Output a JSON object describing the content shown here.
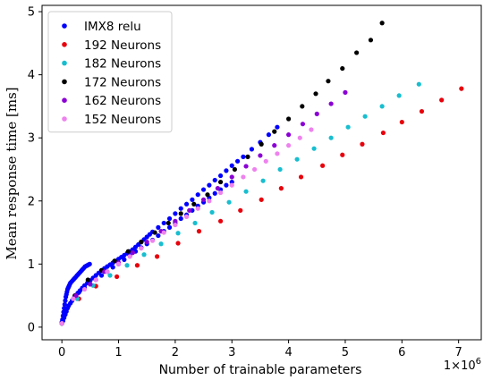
{
  "chart_data": {
    "type": "scatter",
    "xlabel": "Number of trainable parameters",
    "ylabel": "Mean response time [ms]",
    "x_multiplier_label": "1e6",
    "xlim": [
      -0.35,
      7.4
    ],
    "ylim": [
      -0.2,
      5.1
    ],
    "x_unit_scale": 1000000,
    "xticks": [
      0,
      1,
      2,
      3,
      4,
      5,
      6,
      7
    ],
    "yticks": [
      0,
      1,
      2,
      3,
      4,
      5
    ],
    "legend_position": "upper-left",
    "grid": false,
    "series": [
      {
        "name": "IMX8 relu",
        "color": "#0000ff",
        "x": [
          0.0,
          0.01,
          0.02,
          0.03,
          0.04,
          0.05,
          0.06,
          0.07,
          0.08,
          0.09,
          0.1,
          0.11,
          0.12,
          0.13,
          0.14,
          0.15,
          0.17,
          0.19,
          0.21,
          0.23,
          0.25,
          0.27,
          0.29,
          0.31,
          0.33,
          0.35,
          0.37,
          0.39,
          0.41,
          0.43,
          0.45,
          0.47,
          0.49,
          0.02,
          0.04,
          0.06,
          0.08,
          0.1,
          0.12,
          0.15,
          0.18,
          0.21,
          0.24,
          0.28,
          0.32,
          0.36,
          0.4,
          0.45,
          0.5,
          0.55,
          0.6,
          0.65,
          0.7,
          0.75,
          0.8,
          0.85,
          0.9,
          0.95,
          1.0,
          1.05,
          1.1,
          1.15,
          1.2,
          1.25,
          1.3,
          1.35,
          1.4,
          1.45,
          1.5,
          1.55,
          1.6,
          1.7,
          1.8,
          1.9,
          2.0,
          2.1,
          2.2,
          2.3,
          2.4,
          2.5,
          2.6,
          2.7,
          2.8,
          2.9,
          3.0,
          3.1,
          3.2,
          3.35,
          3.5,
          3.65,
          3.8,
          0.3,
          0.4,
          0.5,
          0.6,
          0.7,
          0.8,
          0.9,
          1.0,
          1.1,
          1.2,
          1.3,
          1.4,
          1.5,
          1.6,
          1.7,
          1.8,
          1.9,
          2.0,
          2.1,
          2.2,
          2.3,
          2.4,
          2.5,
          2.6,
          2.7,
          2.8,
          2.9,
          3.0
        ],
        "y": [
          0.08,
          0.12,
          0.18,
          0.24,
          0.3,
          0.36,
          0.42,
          0.48,
          0.52,
          0.56,
          0.6,
          0.62,
          0.64,
          0.66,
          0.68,
          0.7,
          0.72,
          0.74,
          0.76,
          0.78,
          0.8,
          0.82,
          0.84,
          0.86,
          0.88,
          0.9,
          0.92,
          0.94,
          0.96,
          0.97,
          0.98,
          0.99,
          1.0,
          0.1,
          0.15,
          0.2,
          0.25,
          0.3,
          0.34,
          0.38,
          0.42,
          0.46,
          0.5,
          0.54,
          0.58,
          0.62,
          0.66,
          0.7,
          0.74,
          0.78,
          0.82,
          0.86,
          0.9,
          0.93,
          0.96,
          0.99,
          1.02,
          1.05,
          1.08,
          1.11,
          1.14,
          1.17,
          1.2,
          1.23,
          1.27,
          1.31,
          1.35,
          1.39,
          1.43,
          1.47,
          1.51,
          1.58,
          1.65,
          1.72,
          1.8,
          1.88,
          1.95,
          2.02,
          2.1,
          2.18,
          2.25,
          2.33,
          2.4,
          2.48,
          2.56,
          2.63,
          2.7,
          2.82,
          2.93,
          3.05,
          3.17,
          0.55,
          0.62,
          0.68,
          0.75,
          0.82,
          0.88,
          0.95,
          1.0,
          1.07,
          1.13,
          1.2,
          1.26,
          1.32,
          1.38,
          1.45,
          1.52,
          1.58,
          1.65,
          1.72,
          1.78,
          1.85,
          1.92,
          1.98,
          2.05,
          2.12,
          2.18,
          2.25,
          2.3
        ]
      },
      {
        "name": "192 Neurons",
        "color": "#e8000b",
        "x": [
          0.0,
          0.3,
          0.6,
          0.97,
          1.33,
          1.68,
          2.05,
          2.42,
          2.8,
          3.15,
          3.52,
          3.87,
          4.22,
          4.6,
          4.95,
          5.3,
          5.67,
          6.0,
          6.35,
          6.7,
          7.05
        ],
        "y": [
          0.06,
          0.45,
          0.65,
          0.8,
          0.98,
          1.12,
          1.33,
          1.52,
          1.68,
          1.85,
          2.02,
          2.2,
          2.38,
          2.56,
          2.73,
          2.9,
          3.08,
          3.25,
          3.42,
          3.6,
          3.78
        ]
      },
      {
        "name": "182 Neurons",
        "color": "#17becf",
        "x": [
          0.0,
          0.27,
          0.55,
          0.85,
          1.15,
          1.45,
          1.75,
          2.05,
          2.35,
          2.65,
          2.95,
          3.25,
          3.55,
          3.85,
          4.15,
          4.45,
          4.75,
          5.05,
          5.35,
          5.65,
          5.95,
          6.3
        ],
        "y": [
          0.06,
          0.45,
          0.66,
          0.82,
          0.98,
          1.15,
          1.32,
          1.49,
          1.65,
          1.82,
          1.98,
          2.15,
          2.32,
          2.5,
          2.66,
          2.83,
          3.0,
          3.17,
          3.34,
          3.5,
          3.67,
          3.85
        ]
      },
      {
        "name": "172 Neurons",
        "color": "#000000",
        "x": [
          0.0,
          0.23,
          0.46,
          0.7,
          0.93,
          1.17,
          1.4,
          1.64,
          1.88,
          2.1,
          2.33,
          2.57,
          2.8,
          3.05,
          3.28,
          3.52,
          3.75,
          4.0,
          4.24,
          4.48,
          4.7,
          4.95,
          5.2,
          5.45,
          5.65
        ],
        "y": [
          0.06,
          0.5,
          0.75,
          0.9,
          1.05,
          1.2,
          1.35,
          1.5,
          1.65,
          1.8,
          1.95,
          2.1,
          2.3,
          2.5,
          2.7,
          2.9,
          3.1,
          3.3,
          3.5,
          3.7,
          3.9,
          4.1,
          4.35,
          4.55,
          4.82
        ]
      },
      {
        "name": "162 Neurons",
        "color": "#8a00d4",
        "x": [
          0.0,
          0.25,
          0.5,
          0.75,
          1.0,
          1.25,
          1.5,
          1.75,
          2.0,
          2.25,
          2.5,
          2.75,
          3.0,
          3.25,
          3.5,
          3.75,
          4.0,
          4.25,
          4.5,
          4.75,
          5.0
        ],
        "y": [
          0.06,
          0.5,
          0.68,
          0.88,
          1.02,
          1.18,
          1.35,
          1.52,
          1.68,
          1.85,
          2.02,
          2.2,
          2.38,
          2.55,
          2.72,
          2.88,
          3.05,
          3.22,
          3.38,
          3.54,
          3.72
        ]
      },
      {
        "name": "152 Neurons",
        "color": "#ee82ee",
        "x": [
          0.0,
          0.2,
          0.4,
          0.6,
          0.8,
          1.0,
          1.2,
          1.4,
          1.6,
          1.8,
          2.0,
          2.2,
          2.4,
          2.6,
          2.8,
          3.0,
          3.2,
          3.4,
          3.6,
          3.8,
          4.0,
          4.2,
          4.4
        ],
        "y": [
          0.06,
          0.45,
          0.6,
          0.75,
          0.88,
          1.0,
          1.12,
          1.25,
          1.37,
          1.5,
          1.62,
          1.75,
          1.88,
          2.0,
          2.13,
          2.25,
          2.38,
          2.5,
          2.63,
          2.75,
          2.88,
          3.0,
          3.13
        ]
      }
    ]
  }
}
